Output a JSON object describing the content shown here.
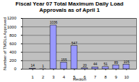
{
  "chart_data": {
    "type": "bar",
    "title": "Fiscal Year 07 Total Maximum Daily Load Approvals as of April 1",
    "x_label": "Region",
    "y_label": "Number of TMDLs Approved",
    "categories": [
      "1",
      "2",
      "3",
      "4",
      "5",
      "6",
      "7",
      "8",
      "9",
      "10"
    ],
    "values": [
      14,
      1,
      1036,
      155,
      547,
      20,
      44,
      51,
      89,
      105
    ],
    "color": "#9999ff",
    "ylim": [
      0,
      1200
    ],
    "yticks": [
      0,
      200,
      400,
      600,
      800,
      1000,
      1200
    ],
    "grid": true,
    "data_labels": true
  }
}
